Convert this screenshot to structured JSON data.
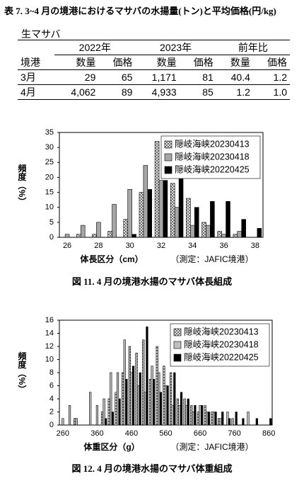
{
  "table": {
    "title": "表 7. 3~4 月の境港におけるマサバの水揚量(トン)と平均価格(円/kg)",
    "subtitle": "生マサバ",
    "groups": [
      "2022年",
      "2023年",
      "前年比"
    ],
    "columns": [
      "境港",
      "数量",
      "価格",
      "数量",
      "価格",
      "数量",
      "価格"
    ],
    "rows": [
      [
        "3月",
        "29",
        "65",
        "1,171",
        "81",
        "40.4",
        "1.2"
      ],
      [
        "4月",
        "4,062",
        "89",
        "4,933",
        "85",
        "1.2",
        "1.0"
      ]
    ]
  },
  "chart_data": [
    {
      "type": "bar",
      "ylabel": "頻度（%）",
      "xlabel": "体長区分（cm）",
      "xlabel_note": "（測定：JAFIC境港）",
      "caption": "図 11. 4 月の境港水揚のマサバ体長組成",
      "categories": [
        26,
        null,
        28,
        null,
        30,
        null,
        32,
        null,
        34,
        null,
        36,
        null,
        38
      ],
      "series": [
        {
          "name": "隠岐海峡20230413",
          "color": "#ffffff",
          "pattern": "crosshatch",
          "values": [
            0,
            1,
            1,
            2,
            6,
            15,
            32,
            18,
            13,
            5,
            2,
            1,
            0
          ]
        },
        {
          "name": "隠岐海峡20230418",
          "color": "#a6a6a6",
          "values": [
            1,
            4,
            5,
            11,
            16,
            24,
            19,
            10,
            4,
            4,
            1,
            2,
            0
          ]
        },
        {
          "name": "隠岐海峡20220425",
          "color": "#000000",
          "values": [
            0,
            0,
            0,
            0,
            1,
            16,
            19,
            20,
            10,
            12,
            12,
            6,
            3
          ]
        }
      ],
      "ylim": [
        0,
        35
      ],
      "yticks": [
        0,
        5,
        10,
        15,
        20,
        25,
        30,
        35
      ],
      "legend": "upper right"
    },
    {
      "type": "bar",
      "ylabel": "頻度（%）",
      "xlabel": "体重区分（g）",
      "xlabel_note": "（測定：JAFIC境港）",
      "caption": "図 12. 4 月の境港水揚のマサバ体重組成",
      "categories": [
        260,
        null,
        null,
        null,
        null,
        360,
        null,
        null,
        null,
        null,
        460,
        null,
        null,
        null,
        null,
        560,
        null,
        null,
        null,
        null,
        660,
        null,
        null,
        null,
        null,
        760,
        null,
        null,
        null,
        null,
        860
      ],
      "series": [
        {
          "name": "隠岐海峡20230413",
          "color": "#ffffff",
          "pattern": "crosshatch",
          "values": [
            0,
            0,
            1,
            0,
            0,
            0,
            2,
            4,
            5,
            8,
            12,
            11,
            13,
            7,
            12,
            9,
            8,
            4,
            4,
            3,
            2,
            3,
            2,
            1,
            0,
            1,
            0,
            0,
            0,
            0,
            0
          ]
        },
        {
          "name": "隠岐海峡20230418",
          "color": "#bfbfbf",
          "values": [
            1,
            3,
            1,
            0,
            5,
            3,
            4,
            8,
            8,
            13,
            8,
            6,
            5,
            9,
            8,
            6,
            3,
            3,
            3,
            2,
            3,
            2,
            2,
            1,
            2,
            0,
            0,
            2,
            0,
            0,
            0
          ]
        },
        {
          "name": "隠岐海峡20220425",
          "color": "#000000",
          "values": [
            0,
            0,
            0,
            0,
            0,
            0,
            1,
            2,
            4,
            7,
            9,
            8,
            15,
            7,
            5,
            6,
            8,
            5,
            4,
            3,
            3,
            2,
            2,
            2,
            1,
            2,
            1,
            0,
            1,
            0,
            1
          ]
        }
      ],
      "ylim": [
        0,
        16
      ],
      "yticks": [
        0,
        2,
        4,
        6,
        8,
        10,
        12,
        14,
        16
      ],
      "legend": "upper right"
    }
  ]
}
